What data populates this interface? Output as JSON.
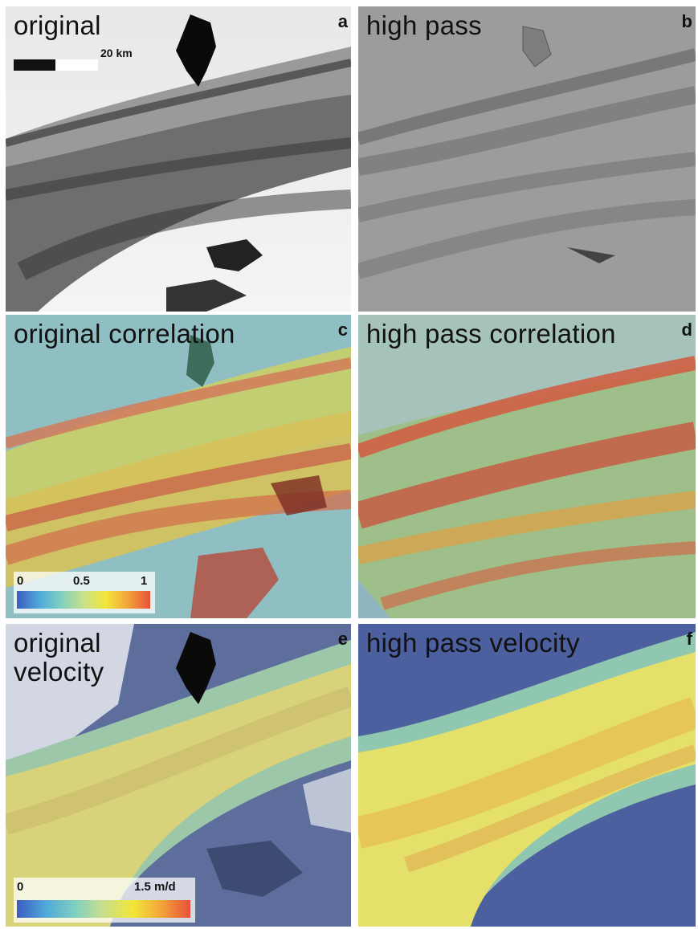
{
  "scale_bar": {
    "label": "20 km"
  },
  "panels": {
    "a": {
      "title": "original",
      "letter": "a"
    },
    "b": {
      "title": "high pass",
      "letter": "b"
    },
    "c": {
      "title": "original correlation",
      "letter": "c"
    },
    "d": {
      "title": "high pass correlation",
      "letter": "d"
    },
    "e": {
      "title": "original\nvelocity",
      "letter": "e"
    },
    "f": {
      "title": "high pass velocity",
      "letter": "f"
    }
  },
  "colorbars": {
    "correlation": {
      "min_label": "0",
      "mid_label": "0.5",
      "max_label": "1"
    },
    "velocity": {
      "min_label": "0",
      "max_label": "1.5 m/d"
    }
  },
  "colors": {
    "ramp_low": "#3b5cc0",
    "ramp_mid": "#f2e63a",
    "ramp_high": "#e8503a",
    "background_blue": "#4c5f9e"
  }
}
